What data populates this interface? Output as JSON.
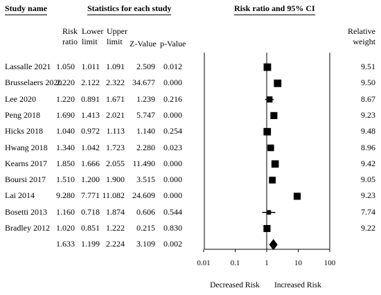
{
  "headers": {
    "study_name": "Study name",
    "statistics": "Statistics for each study",
    "ci": "Risk ratio and 95% CI"
  },
  "columns": {
    "risk_ratio": [
      "Risk",
      "ratio"
    ],
    "lower": [
      "Lower",
      "limit"
    ],
    "upper": [
      "Upper",
      "limit"
    ],
    "z": "Z-Value",
    "p": "p-Value",
    "weight": [
      "Relative",
      "weight"
    ]
  },
  "axis": {
    "ticks": [
      "0.01",
      "0.1",
      "1",
      "10",
      "100"
    ],
    "left_label": "Decreased Risk",
    "right_label": "Increased Risk"
  },
  "chart_data": {
    "type": "forest",
    "scale": "log",
    "xlim": [
      0.01,
      100
    ],
    "reference_line": 1,
    "studies": [
      {
        "name": "Lassalle 2021",
        "rr": "1.050",
        "lower": "1.011",
        "upper": "1.091",
        "z": "2.509",
        "p": "0.012",
        "weight": "9.51"
      },
      {
        "name": "Brusselaers 2020",
        "rr": "2.220",
        "lower": "2.122",
        "upper": "2.322",
        "z": "34.677",
        "p": "0.000",
        "weight": "9.50"
      },
      {
        "name": "Lee 2020",
        "rr": "1.220",
        "lower": "0.891",
        "upper": "1.671",
        "z": "1.239",
        "p": "0.216",
        "weight": "8.67"
      },
      {
        "name": "Peng 2018",
        "rr": "1.690",
        "lower": "1.413",
        "upper": "2.021",
        "z": "5.747",
        "p": "0.000",
        "weight": "9.23"
      },
      {
        "name": "Hicks 2018",
        "rr": "1.040",
        "lower": "0.972",
        "upper": "1.113",
        "z": "1.140",
        "p": "0.254",
        "weight": "9.48"
      },
      {
        "name": "Hwang 2018",
        "rr": "1.340",
        "lower": "1.042",
        "upper": "1.723",
        "z": "2.280",
        "p": "0.023",
        "weight": "8.96"
      },
      {
        "name": "Kearns 2017",
        "rr": "1.850",
        "lower": "1.666",
        "upper": "2.055",
        "z": "11.490",
        "p": "0.000",
        "weight": "9.42"
      },
      {
        "name": "Boursi 2017",
        "rr": "1.510",
        "lower": "1.200",
        "upper": "1.900",
        "z": "3.515",
        "p": "0.000",
        "weight": "9.05"
      },
      {
        "name": "Lai 2014",
        "rr": "9.280",
        "lower": "7.771",
        "upper": "11.082",
        "z": "24.609",
        "p": "0.000",
        "weight": "9.23"
      },
      {
        "name": "Bosetti 2013",
        "rr": "1.160",
        "lower": "0.718",
        "upper": "1.874",
        "z": "0.606",
        "p": "0.544",
        "weight": "7.74"
      },
      {
        "name": "Bradley 2012",
        "rr": "1.020",
        "lower": "0.851",
        "upper": "1.222",
        "z": "0.215",
        "p": "0.830",
        "weight": "9.22"
      }
    ],
    "pooled": {
      "rr": "1.633",
      "lower": "1.199",
      "upper": "2.224",
      "z": "3.109",
      "p": "0.002"
    }
  }
}
